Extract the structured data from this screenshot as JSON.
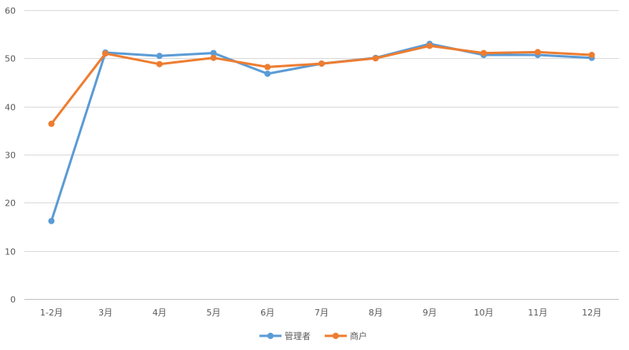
{
  "chart_data": {
    "type": "line",
    "title": "",
    "xlabel": "",
    "ylabel": "",
    "categories": [
      "1-2月",
      "3月",
      "4月",
      "5月",
      "6月",
      "7月",
      "8月",
      "9月",
      "10月",
      "11月",
      "12月"
    ],
    "ylim": [
      0,
      60
    ],
    "yticks": [
      0,
      10,
      20,
      30,
      40,
      50,
      60
    ],
    "grid": true,
    "legend_position": "bottom",
    "series": [
      {
        "name": "管理者",
        "color": "#5b9bd5",
        "values": [
          16.2,
          51.2,
          50.5,
          51.1,
          46.8,
          48.9,
          50.1,
          53.0,
          50.7,
          50.7,
          50.1
        ]
      },
      {
        "name": "商户",
        "color": "#ed7d31",
        "values": [
          36.4,
          51.0,
          48.8,
          50.1,
          48.2,
          48.9,
          50.0,
          52.6,
          51.1,
          51.3,
          50.7
        ]
      }
    ]
  }
}
